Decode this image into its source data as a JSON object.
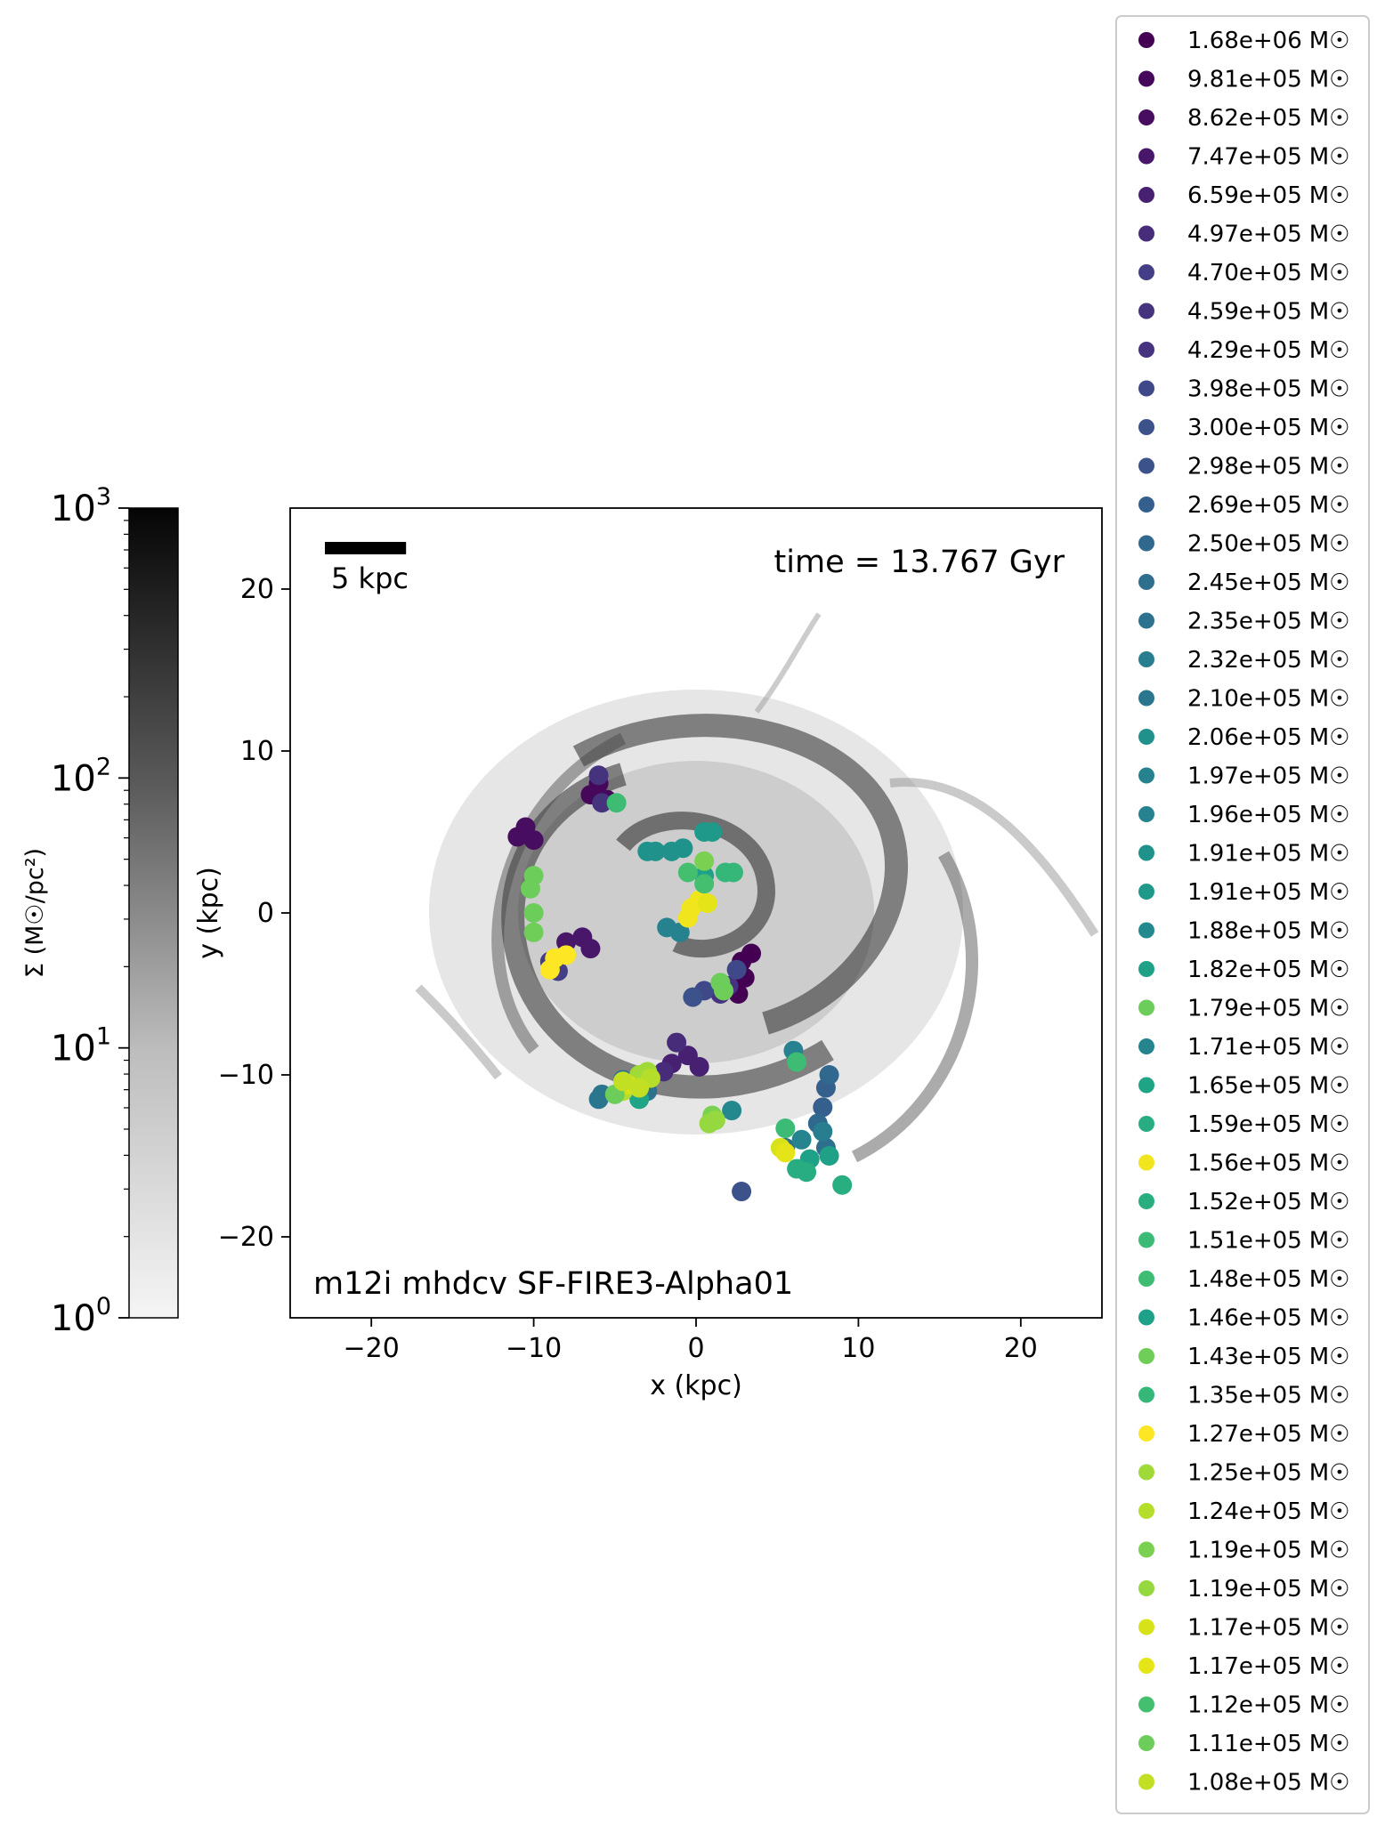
{
  "chart_data": {
    "type": "scatter",
    "title": "",
    "xlabel": "x (kpc)",
    "ylabel": "y (kpc)",
    "xlim": [
      -25,
      25
    ],
    "ylim": [
      -25,
      25
    ],
    "xticks": [
      -20,
      -10,
      0,
      10,
      20
    ],
    "yticks": [
      -20,
      -10,
      0,
      10,
      20
    ],
    "time_label": "time = 13.767 Gyr",
    "run_label": "m12i mhdcv SF-FIRE3-Alpha01",
    "scalebar_label": "5 kpc",
    "scalebar_length_kpc": 5,
    "colorbar": {
      "label": "Σ (M☉/pc²)",
      "scale": "log",
      "range": [
        1,
        1000
      ],
      "ticks": [
        {
          "base": "10",
          "exp": "0"
        },
        {
          "base": "10",
          "exp": "1"
        },
        {
          "base": "10",
          "exp": "2"
        },
        {
          "base": "10",
          "exp": "3"
        }
      ]
    },
    "mass_unit": "M☉",
    "series": [
      {
        "name": "1.68e+06",
        "color": "#440154",
        "points": [
          [
            2.8,
            -3.0
          ],
          [
            3.0,
            -4.0
          ],
          [
            3.4,
            -2.5
          ],
          [
            2.6,
            -5.0
          ]
        ]
      },
      {
        "name": "9.81e+05",
        "color": "#45085b",
        "points": [
          [
            -6.5,
            7.3
          ],
          [
            -5.5,
            7.0
          ],
          [
            -6.0,
            8.0
          ]
        ]
      },
      {
        "name": "8.62e+05",
        "color": "#470d60",
        "points": [
          [
            -11.0,
            4.7
          ],
          [
            -10.5,
            5.3
          ],
          [
            -10.0,
            4.5
          ]
        ]
      },
      {
        "name": "7.47e+05",
        "color": "#481769",
        "points": [
          [
            -8.0,
            -1.8
          ],
          [
            -7.0,
            -1.5
          ],
          [
            -6.5,
            -2.2
          ]
        ]
      },
      {
        "name": "6.59e+05",
        "color": "#482072",
        "points": [
          [
            -1.5,
            -9.3
          ],
          [
            -0.5,
            -8.8
          ],
          [
            0.2,
            -9.5
          ]
        ]
      },
      {
        "name": "4.97e+05",
        "color": "#472c7a",
        "points": [
          [
            -2.0,
            -9.8
          ],
          [
            -1.2,
            -8.0
          ]
        ]
      },
      {
        "name": "4.70e+05",
        "color": "#433e85",
        "points": [
          [
            -9.0,
            -3.0
          ],
          [
            -8.5,
            -3.6
          ]
        ]
      },
      {
        "name": "4.59e+05",
        "color": "#46337e",
        "points": [
          [
            -6.0,
            8.5
          ],
          [
            -5.8,
            6.8
          ]
        ]
      },
      {
        "name": "4.29e+05",
        "color": "#45337f",
        "points": [
          [
            2.0,
            -4.5
          ],
          [
            1.5,
            -5.0
          ]
        ]
      },
      {
        "name": "3.98e+05",
        "color": "#3f4889",
        "points": [
          [
            0.5,
            -4.8
          ],
          [
            2.5,
            -3.5
          ]
        ]
      },
      {
        "name": "3.00e+05",
        "color": "#3b528b",
        "points": [
          [
            -0.2,
            -5.2
          ]
        ]
      },
      {
        "name": "2.98e+05",
        "color": "#3b528b",
        "points": [
          [
            2.8,
            -17.2
          ]
        ]
      },
      {
        "name": "2.69e+05",
        "color": "#355f8d",
        "points": [
          [
            7.8,
            -12.0
          ],
          [
            8.0,
            -10.8
          ]
        ]
      },
      {
        "name": "2.50e+05",
        "color": "#31688e",
        "points": [
          [
            8.2,
            -10.0
          ],
          [
            7.5,
            -13.0
          ]
        ]
      },
      {
        "name": "2.45e+05",
        "color": "#2e6f8e",
        "points": [
          [
            5.5,
            -14.5
          ],
          [
            8.0,
            -14.5
          ]
        ]
      },
      {
        "name": "2.35e+05",
        "color": "#2c728e",
        "points": [
          [
            -3.0,
            -11.0
          ],
          [
            -4.5,
            -10.3
          ]
        ]
      },
      {
        "name": "2.32e+05",
        "color": "#287d8e",
        "points": [
          [
            7.8,
            -13.5
          ]
        ]
      },
      {
        "name": "2.10e+05",
        "color": "#2a768e",
        "points": [
          [
            -6.0,
            -11.5
          ],
          [
            -5.8,
            -11.2
          ]
        ]
      },
      {
        "name": "2.06e+05",
        "color": "#21918c",
        "points": [
          [
            -1.5,
            3.8
          ],
          [
            -2.5,
            3.8
          ]
        ]
      },
      {
        "name": "1.97e+05",
        "color": "#26828e",
        "points": [
          [
            -1.8,
            -0.9
          ],
          [
            -1.0,
            -1.2
          ]
        ]
      },
      {
        "name": "1.96e+05",
        "color": "#26828e",
        "points": [
          [
            6.0,
            -8.5
          ]
        ]
      },
      {
        "name": "1.91e+05",
        "color": "#20928c",
        "points": [
          [
            -3.0,
            3.8
          ],
          [
            -0.8,
            4.0
          ]
        ]
      },
      {
        "name": "1.91e+05",
        "color": "#1f9a8a",
        "points": [
          [
            0.5,
            5.0
          ],
          [
            1.0,
            5.0
          ]
        ]
      },
      {
        "name": "1.88e+05",
        "color": "#23898e",
        "points": [
          [
            2.2,
            -12.2
          ]
        ]
      },
      {
        "name": "1.82e+05",
        "color": "#1fa187",
        "points": [
          [
            8.2,
            -15.0
          ],
          [
            7.0,
            -15.2
          ]
        ]
      },
      {
        "name": "1.79e+05",
        "color": "#6ccd5a",
        "points": [
          [
            -10.0,
            0.0
          ],
          [
            -10.2,
            1.5
          ],
          [
            -10.0,
            2.3
          ]
        ]
      },
      {
        "name": "1.71e+05",
        "color": "#25848e",
        "points": [
          [
            6.5,
            -14.0
          ]
        ]
      },
      {
        "name": "1.65e+05",
        "color": "#20a486",
        "points": [
          [
            -3.5,
            -11.5
          ]
        ]
      },
      {
        "name": "1.59e+05",
        "color": "#27ad81",
        "points": [
          [
            6.2,
            -15.8
          ],
          [
            6.8,
            -16.0
          ]
        ]
      },
      {
        "name": "1.56e+05",
        "color": "#f1e51d",
        "points": [
          [
            -0.3,
            0.3
          ],
          [
            0.2,
            0.8
          ],
          [
            -0.5,
            -0.3
          ]
        ]
      },
      {
        "name": "1.52e+05",
        "color": "#29af7f",
        "points": [
          [
            9.0,
            -16.8
          ]
        ]
      },
      {
        "name": "1.51e+05",
        "color": "#3bbb75",
        "points": [
          [
            5.5,
            -13.3
          ]
        ]
      },
      {
        "name": "1.48e+05",
        "color": "#3fbc73",
        "points": [
          [
            -4.9,
            6.8
          ],
          [
            6.2,
            -9.2
          ]
        ]
      },
      {
        "name": "1.46e+05",
        "color": "#1fa088",
        "points": [
          [
            0.5,
            2.3
          ]
        ]
      },
      {
        "name": "1.43e+05",
        "color": "#6ece58",
        "points": [
          [
            -10.0,
            -1.2
          ],
          [
            1.7,
            -4.8
          ]
        ]
      },
      {
        "name": "1.35e+05",
        "color": "#35b779",
        "points": [
          [
            2.3,
            2.5
          ],
          [
            1.8,
            2.5
          ]
        ]
      },
      {
        "name": "1.27e+05",
        "color": "#fde725",
        "points": [
          [
            -9.0,
            -3.5
          ],
          [
            -8.0,
            -2.6
          ],
          [
            -8.7,
            -2.8
          ]
        ]
      },
      {
        "name": "1.25e+05",
        "color": "#a0da39",
        "points": [
          [
            -3.5,
            -10.0
          ],
          [
            -3.0,
            -9.8
          ]
        ]
      },
      {
        "name": "1.24e+05",
        "color": "#b5de2b",
        "points": [
          [
            -4.5,
            -11.0
          ],
          [
            -2.8,
            -10.2
          ]
        ]
      },
      {
        "name": "1.19e+05",
        "color": "#7ad151",
        "points": [
          [
            0.5,
            3.2
          ],
          [
            1.0,
            -12.5
          ]
        ]
      },
      {
        "name": "1.19e+05",
        "color": "#95d840",
        "points": [
          [
            0.8,
            -13.0
          ],
          [
            1.2,
            -12.8
          ]
        ]
      },
      {
        "name": "1.17e+05",
        "color": "#d8e219",
        "points": [
          [
            -4.2,
            -10.6
          ],
          [
            5.2,
            -14.5
          ]
        ]
      },
      {
        "name": "1.17e+05",
        "color": "#e5e419",
        "points": [
          [
            0.7,
            0.6
          ],
          [
            5.5,
            -14.8
          ]
        ]
      },
      {
        "name": "1.12e+05",
        "color": "#44bf70",
        "points": [
          [
            0.5,
            1.8
          ],
          [
            -0.5,
            2.5
          ]
        ]
      },
      {
        "name": "1.11e+05",
        "color": "#6ccd5a",
        "points": [
          [
            -5.0,
            -11.2
          ],
          [
            1.5,
            -4.3
          ]
        ]
      },
      {
        "name": "1.08e+05",
        "color": "#c2df23",
        "points": [
          [
            -4.5,
            -10.4
          ],
          [
            -3.5,
            -10.8
          ]
        ]
      }
    ]
  }
}
